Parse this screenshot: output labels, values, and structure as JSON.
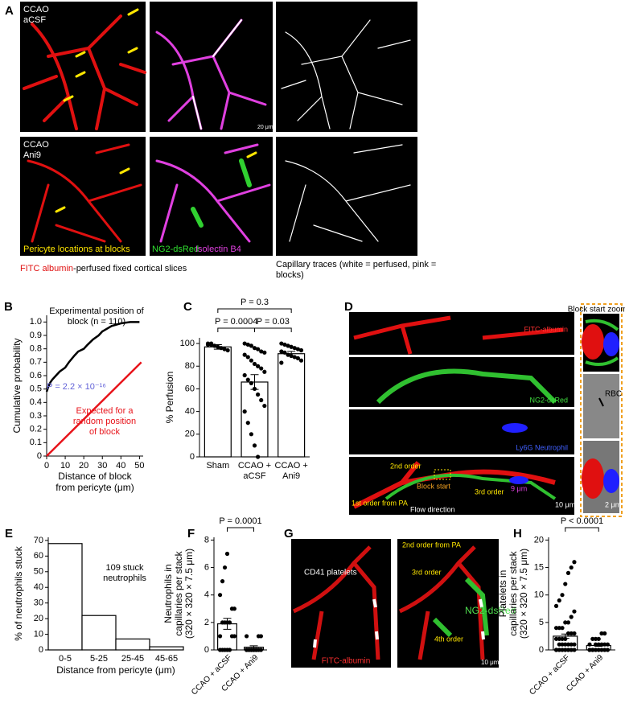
{
  "image_panels": {
    "A": {
      "label": "A",
      "row1": [
        "CCAO",
        "aCSF"
      ],
      "row2": [
        "CCAO",
        "Ani9"
      ],
      "pericyte": "Pericyte locations at blocks",
      "ng2": "NG2-dsRed",
      "isolectin": "Isolectin B4",
      "scale": "20 μm",
      "caption_red": "FITC albumin",
      "caption_rest": "-perfused fixed cortical slices",
      "caption_right": "Capillary traces (white = perfused, pink = blocks)"
    },
    "D": {
      "label": "D",
      "fitc": "FITC-albumin",
      "ng2": "NG2-dsRed",
      "ly6g": "Ly6G Neutrophil",
      "second": "2nd order",
      "block": "Block start",
      "third": "3rd order",
      "dist": "9 μm",
      "first": "1st order from PA",
      "flow": "Flow direction",
      "scale": "10 μm",
      "zoom_title": "Block start zoom in",
      "rbc": "RBC",
      "zoom_scale": "2 μm"
    },
    "G": {
      "label": "G",
      "cd41": "CD41 platelets",
      "fitc": "FITC-albumin",
      "second": "2nd order from PA",
      "third": "3rd order",
      "ng2": "NG2-dsRed",
      "fourth": "4th order",
      "scale": "10 μm"
    }
  },
  "chart_data": [
    {
      "type": "line",
      "label": "B",
      "ylabel": [
        "Cumulative probability"
      ],
      "xlabel": [
        "Distance of block",
        "from pericyte (μm)"
      ],
      "xlim": [
        0,
        52
      ],
      "ylim": [
        0,
        1.05
      ],
      "xticks": [
        0,
        10,
        20,
        30,
        40,
        50
      ],
      "yticks": [
        0,
        0.1,
        0.2,
        0.3,
        0.4,
        0.5,
        0.6,
        0.7,
        0.8,
        0.9,
        {
          "value": 1,
          "label": "1.0"
        }
      ],
      "series": [
        {
          "name": "Experimental position of block (n = 110)",
          "color": "#000000",
          "x": [
            0,
            1,
            2,
            3,
            5,
            7,
            10,
            12,
            15,
            17,
            20,
            22,
            25,
            28,
            30,
            35,
            40,
            45,
            50
          ],
          "values": [
            0.48,
            0.52,
            0.55,
            0.57,
            0.6,
            0.63,
            0.66,
            0.7,
            0.75,
            0.78,
            0.8,
            0.83,
            0.87,
            0.9,
            0.93,
            0.97,
            0.99,
            1,
            1
          ]
        },
        {
          "name": "Expected for a random position of block",
          "color": "#e8141b",
          "x": [
            0,
            51
          ],
          "values": [
            0,
            0.7
          ]
        }
      ],
      "annotations": [
        {
          "text": "P = 2.2 × 10⁻¹⁶",
          "color": "#6262d8"
        }
      ]
    },
    {
      "type": "bar",
      "label": "C",
      "ylabel": [
        "% Perfusion"
      ],
      "ylim": [
        0,
        105
      ],
      "yticks": [
        0,
        20,
        40,
        60,
        80,
        100
      ],
      "categories": [
        "Sham",
        "CCAO + aCSF",
        "CCAO + Ani9"
      ],
      "values": [
        97,
        66,
        91
      ],
      "errors": [
        2,
        6.5,
        2
      ],
      "points": [
        [
          100,
          99,
          98,
          97,
          96,
          95,
          94,
          99,
          100
        ],
        [
          100,
          99,
          98,
          96,
          95,
          93,
          92,
          90,
          88,
          85,
          82,
          80,
          78,
          75,
          72,
          68,
          65,
          60,
          55,
          50,
          45,
          40,
          30,
          20,
          10,
          0
        ],
        [
          100,
          99,
          98,
          97,
          96,
          95,
          94,
          93,
          92,
          90,
          89,
          88,
          87,
          85,
          83
        ]
      ],
      "comparisons": [
        {
          "label": "P = 0.3",
          "between": [
            "Sham",
            "CCAO + Ani9"
          ]
        },
        {
          "label": "P = 0.0004",
          "between": [
            "Sham",
            "CCAO + aCSF"
          ]
        },
        {
          "label": "P = 0.03",
          "between": [
            "CCAO + aCSF",
            "CCAO + Ani9"
          ]
        }
      ]
    },
    {
      "type": "bar",
      "label": "E",
      "ylabel": [
        "% of neutrophils stuck"
      ],
      "xlabel": [
        "Distance from pericyte (μm)"
      ],
      "ylim": [
        0,
        72
      ],
      "yticks": [
        0,
        10,
        20,
        30,
        40,
        50,
        60,
        70
      ],
      "categories": [
        "0-5",
        "5-25",
        "25-45",
        "45-65"
      ],
      "values": [
        68,
        22,
        7,
        2
      ],
      "annotations": [
        {
          "text": "109 stuck neutrophils",
          "color": "#000000"
        }
      ]
    },
    {
      "type": "bar",
      "label": "F",
      "ylabel": [
        "Neutrophils in",
        "capillaries per stack",
        "(320 × 320 × 7.5 μm)"
      ],
      "ylim": [
        0,
        8.2
      ],
      "yticks": [
        0,
        2,
        4,
        6,
        8
      ],
      "xtick_rotation": -45,
      "categories": [
        "CCAO + aCSF",
        "CCAO + Ani9"
      ],
      "values": [
        1.9,
        0.2
      ],
      "errors": [
        0.4,
        0.1
      ],
      "points": [
        [
          0,
          0,
          0,
          0,
          0,
          1,
          1,
          1,
          2,
          2,
          2,
          2,
          3,
          3,
          4,
          5,
          6,
          7
        ],
        [
          0,
          0,
          0,
          0,
          0,
          0,
          0,
          0,
          0,
          0,
          0,
          0,
          1,
          1,
          1
        ]
      ],
      "comparisons": [
        {
          "label": "P = 0.0001",
          "between": [
            "CCAO + aCSF",
            "CCAO + Ani9"
          ]
        }
      ]
    },
    {
      "type": "bar",
      "label": "H",
      "ylabel": [
        "Platelets in",
        "capillaries per stack",
        "(320 × 320 × 7.5 μm)"
      ],
      "ylim": [
        0,
        20.5
      ],
      "yticks": [
        0,
        5,
        10,
        15,
        20
      ],
      "xtick_rotation": -45,
      "categories": [
        "CCAO + aCSF",
        "CCAO + Ani9"
      ],
      "values": [
        2.5,
        0.8
      ],
      "errors": [
        0.4,
        0.15
      ],
      "points": [
        [
          0,
          0,
          0,
          0,
          0,
          0,
          0,
          0,
          1,
          1,
          1,
          1,
          1,
          1,
          2,
          2,
          2,
          2,
          3,
          3,
          3,
          4,
          4,
          4,
          5,
          5,
          6,
          7,
          8,
          9,
          10,
          12,
          14,
          15,
          16
        ],
        [
          0,
          0,
          0,
          0,
          0,
          0,
          0,
          0,
          0,
          1,
          1,
          1,
          1,
          1,
          1,
          2,
          2,
          2,
          3,
          3
        ]
      ],
      "comparisons": [
        {
          "label": "P < 0.0001",
          "between": [
            "CCAO + aCSF",
            "CCAO + Ani9"
          ]
        }
      ]
    }
  ]
}
